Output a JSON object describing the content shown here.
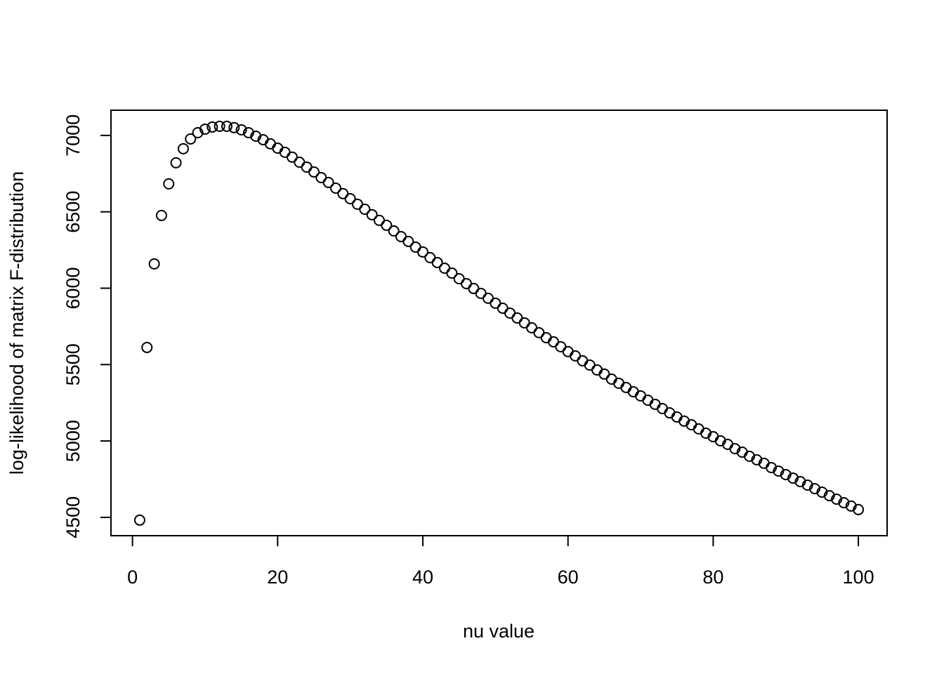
{
  "chart_data": {
    "type": "scatter",
    "x_label": "nu value",
    "y_label": "log-likelihood of matrix F-distribution",
    "x": [
      1,
      2,
      3,
      4,
      5,
      6,
      7,
      8,
      9,
      10,
      11,
      12,
      13,
      14,
      15,
      16,
      17,
      18,
      19,
      20,
      21,
      22,
      23,
      24,
      25,
      26,
      27,
      28,
      29,
      30,
      31,
      32,
      33,
      34,
      35,
      36,
      37,
      38,
      39,
      40,
      41,
      42,
      43,
      44,
      45,
      46,
      47,
      48,
      49,
      50,
      51,
      52,
      53,
      54,
      55,
      56,
      57,
      58,
      59,
      60,
      61,
      62,
      63,
      64,
      65,
      66,
      67,
      68,
      69,
      70,
      71,
      72,
      73,
      74,
      75,
      76,
      77,
      78,
      79,
      80,
      81,
      82,
      83,
      84,
      85,
      86,
      87,
      88,
      89,
      90,
      91,
      92,
      93,
      94,
      95,
      96,
      97,
      98,
      99,
      100
    ],
    "values": [
      4482,
      5612,
      6159,
      6476,
      6683,
      6821,
      6913,
      6977,
      7018,
      7041,
      7055,
      7060,
      7060,
      7051,
      7037,
      7018,
      6995,
      6972,
      6945,
      6917,
      6890,
      6858,
      6825,
      6793,
      6761,
      6724,
      6692,
      6655,
      6619,
      6586,
      6550,
      6517,
      6481,
      6444,
      6412,
      6375,
      6338,
      6306,
      6269,
      6237,
      6200,
      6168,
      6131,
      6099,
      6062,
      6030,
      5998,
      5966,
      5934,
      5902,
      5869,
      5837,
      5805,
      5773,
      5741,
      5709,
      5676,
      5649,
      5617,
      5585,
      5557,
      5525,
      5497,
      5465,
      5438,
      5405,
      5378,
      5350,
      5322,
      5295,
      5267,
      5240,
      5212,
      5184,
      5157,
      5130,
      5106,
      5079,
      5051,
      5028,
      5001,
      4978,
      4950,
      4927,
      4900,
      4877,
      4854,
      4826,
      4803,
      4780,
      4757,
      4734,
      4711,
      4688,
      4665,
      4642,
      4619,
      4596,
      4574,
      4551
    ],
    "color": "#000000",
    "xlim": [
      -2.96,
      103.96
    ],
    "ylim": [
      4380,
      7165
    ],
    "xticks": [
      0,
      20,
      40,
      60,
      80,
      100
    ],
    "yticks": [
      4500,
      5000,
      5500,
      6000,
      6500,
      7000
    ],
    "grid": false
  }
}
